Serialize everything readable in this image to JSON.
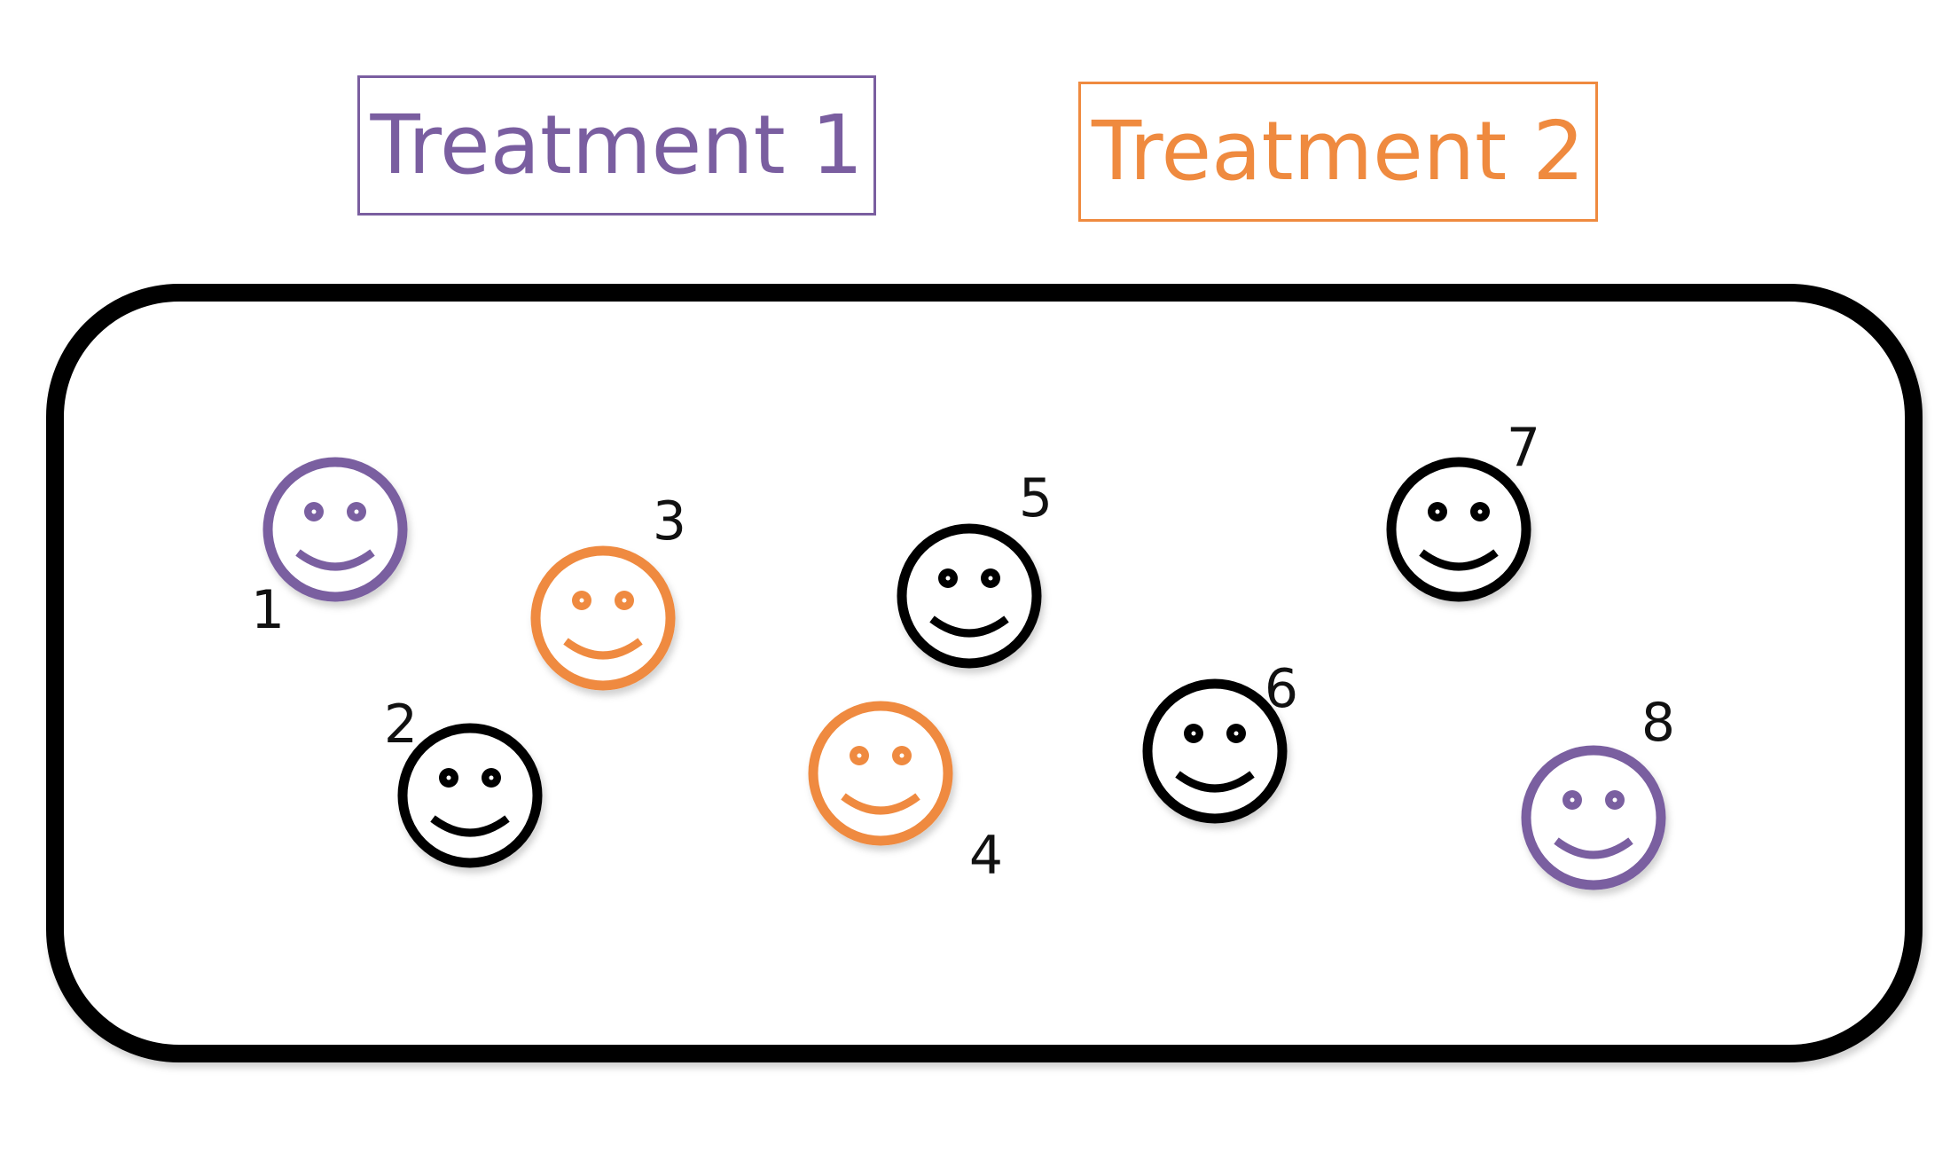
{
  "legend": [
    {
      "label": "Treatment 1",
      "color": "#7a5ea0"
    },
    {
      "label": "Treatment 2",
      "color": "#ef8a3f"
    }
  ],
  "container": {
    "border_color": "#000000"
  },
  "subjects": [
    {
      "number": "1",
      "group": "Treatment 1",
      "color": "#7a5ea0"
    },
    {
      "number": "2",
      "group": "none",
      "color": "#000000"
    },
    {
      "number": "3",
      "group": "Treatment 2",
      "color": "#ef8a3f"
    },
    {
      "number": "4",
      "group": "Treatment 2",
      "color": "#ef8a3f"
    },
    {
      "number": "5",
      "group": "none",
      "color": "#000000"
    },
    {
      "number": "6",
      "group": "none",
      "color": "#000000"
    },
    {
      "number": "7",
      "group": "none",
      "color": "#000000"
    },
    {
      "number": "8",
      "group": "Treatment 1",
      "color": "#7a5ea0"
    }
  ]
}
